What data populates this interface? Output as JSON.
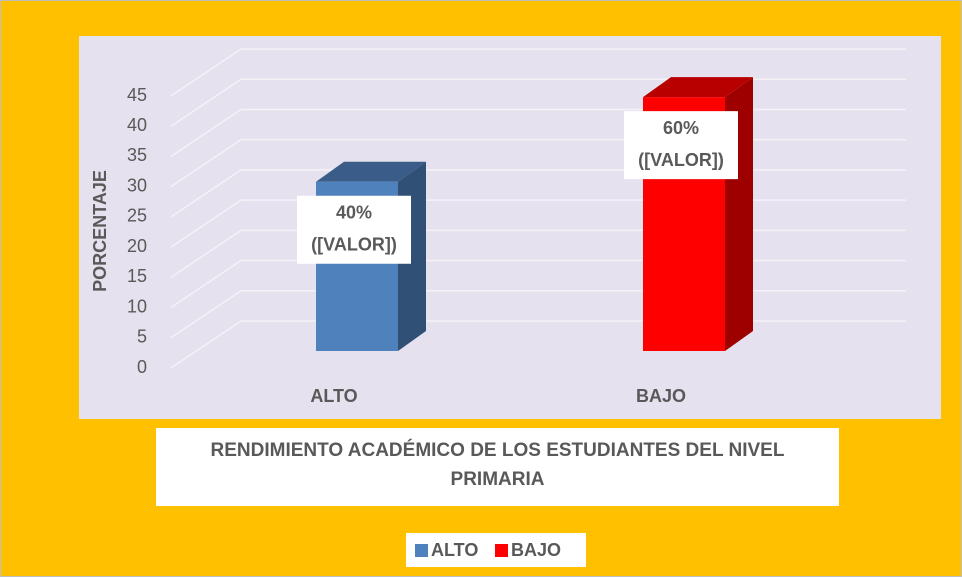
{
  "chart_data": {
    "type": "bar3d",
    "title": "RENDIMIENTO ACADÉMICO DE LOS ESTUDIANTES DEL NIVEL PRIMARIA",
    "y_label": "PORCENTAJE",
    "categories": [
      "ALTO",
      "BAJO"
    ],
    "values": [
      28,
      42
    ],
    "colors": [
      "#4f81bd",
      "#ff0000"
    ],
    "annotations": [
      [
        "40%",
        "([VALOR])"
      ],
      [
        "60%",
        "([VALOR])"
      ]
    ],
    "ylim": [
      0,
      45
    ],
    "yticks": [
      0,
      5,
      10,
      15,
      20,
      25,
      30,
      35,
      40,
      45
    ],
    "grid": true,
    "legend": "bottom"
  }
}
